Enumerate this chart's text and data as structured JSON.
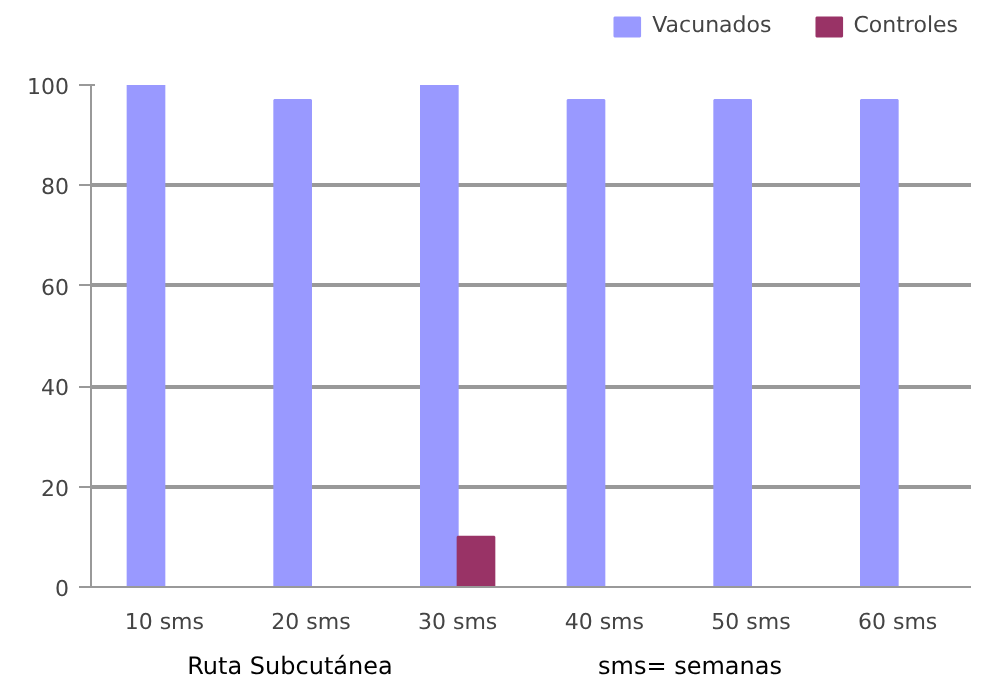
{
  "chart_data": {
    "type": "bar",
    "categories": [
      "10 sms",
      "20 sms",
      "30 sms",
      "40 sms",
      "50 sms",
      "60 sms"
    ],
    "series": [
      {
        "name": "Vacunados",
        "color": "#9999ff",
        "values": [
          100,
          97,
          100,
          97,
          97,
          97
        ]
      },
      {
        "name": "Controles",
        "color": "#993366",
        "values": [
          0,
          0,
          10,
          0,
          0,
          0
        ]
      }
    ],
    "ylim": [
      0,
      100
    ],
    "yticks": [
      0,
      20,
      40,
      60,
      80,
      100
    ],
    "grid": "y",
    "legend": "top right",
    "annotations": [
      "Ruta Subcutánea",
      "sms= semanas"
    ]
  }
}
